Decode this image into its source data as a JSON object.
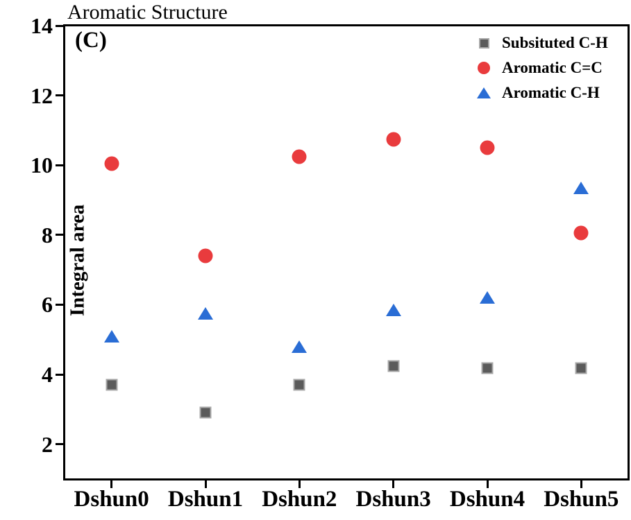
{
  "chart_data": {
    "type": "scatter",
    "title": "Aromatic Structure",
    "panel_label": "(C)",
    "xlabel": "",
    "ylabel": "Integral area",
    "categories": [
      "Dshun0",
      "Dshun1",
      "Dshun2",
      "Dshun3",
      "Dshun4",
      "Dshun5"
    ],
    "ylim": [
      1,
      14
    ],
    "yticks": [
      2,
      4,
      6,
      8,
      10,
      12,
      14
    ],
    "grid": false,
    "legend_position": "top-right-inside",
    "axis_color": "#000000",
    "background_color": "#ffffff",
    "series": [
      {
        "name": "Subsituted C-H",
        "marker": "square",
        "color": "#5b5b5b",
        "edge_color": "#a8a8a8",
        "values": [
          3.7,
          2.9,
          3.7,
          4.25,
          4.18,
          4.18
        ]
      },
      {
        "name": "Aromatic C=C",
        "marker": "circle",
        "color": "#e93b3d",
        "values": [
          10.05,
          7.4,
          10.25,
          10.75,
          10.5,
          8.05
        ]
      },
      {
        "name": "Aromatic C-H",
        "marker": "triangle",
        "color": "#2a6dd5",
        "values": [
          5.1,
          5.75,
          4.8,
          5.85,
          6.2,
          9.35
        ]
      }
    ]
  }
}
